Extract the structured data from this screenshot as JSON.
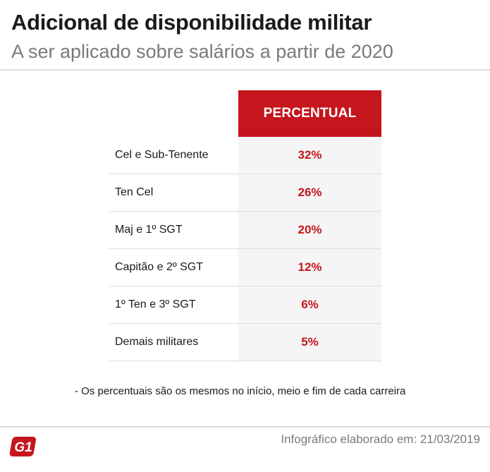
{
  "header": {
    "title": "Adicional de disponibilidade militar",
    "subtitle": "A ser aplicado sobre salários a partir de 2020"
  },
  "table": {
    "column_header": "PERCENTUAL",
    "rows": [
      {
        "label": "Cel e Sub-Tenente",
        "value": "32%"
      },
      {
        "label": "Ten Cel",
        "value": "26%"
      },
      {
        "label": "Maj e 1º SGT",
        "value": "20%"
      },
      {
        "label": "Capitão e 2º SGT",
        "value": "12%"
      },
      {
        "label": "1º Ten e 3º SGT",
        "value": "6%"
      },
      {
        "label": "Demais militares",
        "value": "5%"
      }
    ]
  },
  "note": "- Os percentuais são os mesmos no início, meio e fim de cada carreira",
  "footer": {
    "logo_text": "G1",
    "credit": "Infográfico elaborado em: 21/03/2019"
  },
  "colors": {
    "accent": "#c4161c",
    "value_bg": "#f5f5f5",
    "subtitle": "#7a7a7a"
  }
}
